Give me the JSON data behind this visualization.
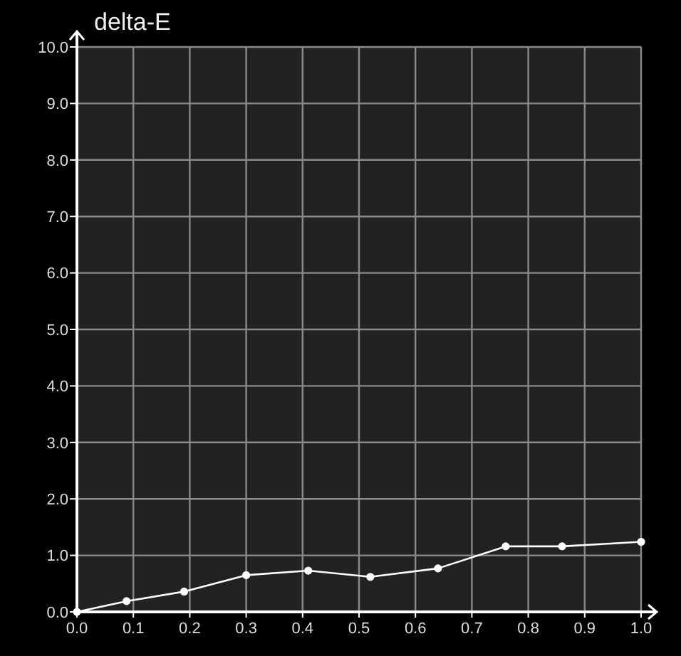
{
  "chart_data": {
    "type": "line",
    "ylabel": "delta-E",
    "x": [
      0,
      0.088,
      0.19,
      0.3,
      0.41,
      0.52,
      0.64,
      0.76,
      0.86,
      1.0
    ],
    "series": [
      {
        "color": "#ffffff",
        "values": [
          0,
          0.19,
          0.36,
          0.65,
          0.73,
          0.62,
          0.77,
          1.16,
          1.16,
          1.24
        ]
      }
    ],
    "xlim": [
      0,
      1
    ],
    "xticks": [
      {
        "value": 0,
        "label": "0.0"
      },
      0.1,
      0.2,
      0.3,
      0.4,
      0.5,
      0.6,
      0.7,
      0.8,
      0.9,
      {
        "value": 1,
        "label": "1.0"
      }
    ],
    "ylim": [
      0,
      10
    ],
    "yticks": [
      {
        "value": 0,
        "label": "0.0"
      },
      {
        "value": 1,
        "label": "1.0"
      },
      {
        "value": 2,
        "label": "2.0"
      },
      {
        "value": 3,
        "label": "3.0"
      },
      {
        "value": 4,
        "label": "4.0"
      },
      {
        "value": 5,
        "label": "5.0"
      },
      {
        "value": 6,
        "label": "6.0"
      },
      {
        "value": 7,
        "label": "7.0"
      },
      {
        "value": 8,
        "label": "8.0"
      },
      {
        "value": 9,
        "label": "9.0"
      },
      {
        "value": 10,
        "label": "10.0"
      }
    ],
    "grid": true,
    "marker": "circle"
  }
}
